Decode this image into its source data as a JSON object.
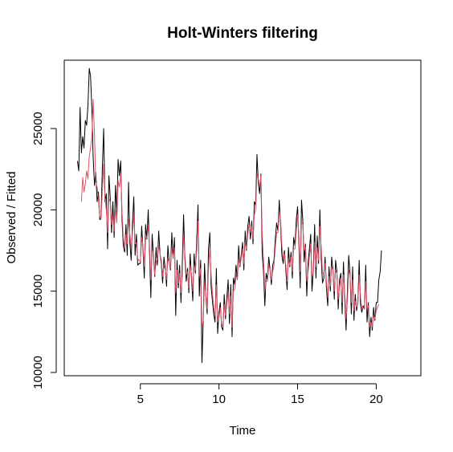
{
  "chart_data": {
    "type": "line",
    "title": "Holt-Winters filtering",
    "xlabel": "Time",
    "ylabel": "Observed / Fitted",
    "xlim": [
      0.16,
      22.84
    ],
    "ylim": [
      9800,
      29200
    ],
    "x_ticks": [
      5,
      10,
      15,
      20
    ],
    "y_ticks": [
      10000,
      15000,
      20000,
      25000
    ],
    "x_tick_labels": [
      "5",
      "10",
      "15",
      "20"
    ],
    "y_tick_labels": [
      "10000",
      "15000",
      "20000",
      "25000"
    ],
    "grid": false,
    "legend": "none",
    "time_start": 1,
    "frequency": 12,
    "fitted_start": 1.25,
    "series": [
      {
        "name": "Observed",
        "color": "#000000",
        "values": [
          23000,
          22400,
          26300,
          23500,
          24500,
          23800,
          25500,
          25200,
          26400,
          28700,
          28200,
          26200,
          23200,
          21500,
          22300,
          20500,
          21100,
          19400,
          19600,
          22600,
          25000,
          20500,
          21000,
          17600,
          22100,
          20800,
          18600,
          20500,
          18300,
          21500,
          19700,
          23100,
          22100,
          23000,
          19400,
          17800,
          17400,
          19100,
          17200,
          21700,
          18000,
          16900,
          19200,
          20800,
          17200,
          18500,
          16600,
          16700,
          16700,
          19000,
          17600,
          15800,
          19100,
          18200,
          20000,
          17400,
          14600,
          18500,
          17200,
          15900,
          17700,
          16600,
          18700,
          17300,
          16700,
          15500,
          17100,
          16400,
          15300,
          17800,
          16800,
          16300,
          18600,
          17000,
          18300,
          13500,
          16900,
          15200,
          16600,
          14300,
          16700,
          19700,
          17000,
          15600,
          16400,
          14900,
          17300,
          15900,
          14400,
          17300,
          16100,
          18100,
          20300,
          14700,
          16900,
          10600,
          13200,
          16700,
          14700,
          13600,
          17600,
          18600,
          15300,
          14400,
          13600,
          13100,
          16400,
          12400,
          13700,
          14300,
          12800,
          12600,
          14800,
          13300,
          14600,
          15700,
          13000,
          15400,
          12200,
          15800,
          15400,
          16600,
          15700,
          17800,
          16500,
          17200,
          18000,
          16300,
          18700,
          17500,
          19000,
          19600,
          18200,
          19300,
          17900,
          20500,
          20300,
          23400,
          21700,
          21000,
          22200,
          17300,
          16200,
          14100,
          16100,
          15700,
          17100,
          16300,
          15400,
          16600,
          16900,
          18200,
          19200,
          18700,
          20600,
          19100,
          17200,
          16700,
          17500,
          16300,
          15100,
          17700,
          16500,
          17400,
          15800,
          18300,
          17800,
          19400,
          20200,
          17900,
          15200,
          20600,
          19300,
          16800,
          17900,
          14700,
          16700,
          17600,
          18500,
          15000,
          16300,
          19100,
          15800,
          18400,
          16700,
          20000,
          17100,
          15500,
          15800,
          17100,
          15200,
          14100,
          16500,
          15000,
          17100,
          16300,
          14500,
          16900,
          16200,
          13900,
          15700,
          16100,
          13600,
          16800,
          14500,
          12600,
          15000,
          17200,
          16100,
          13600,
          16500,
          13200,
          14800,
          13800,
          14300,
          16900,
          14200,
          13700,
          14100,
          13900,
          16600,
          13100,
          14300,
          12200,
          13400,
          12600,
          14000,
          13200,
          14300,
          14300,
          15700,
          16200,
          17500
        ]
      },
      {
        "name": "Fitted",
        "color": "#DF536B",
        "values": [
          20500,
          22000,
          21100,
          21600,
          22400,
          21900,
          23300,
          23800,
          24500,
          26800,
          24600,
          21700,
          21400,
          20600,
          19600,
          19400,
          21200,
          22800,
          20800,
          20000,
          18600,
          20700,
          20500,
          19100,
          19600,
          18700,
          20000,
          19200,
          21800,
          21400,
          22200,
          19900,
          18300,
          17600,
          18500,
          17900,
          19400,
          18500,
          17600,
          18600,
          19700,
          17900,
          18000,
          17000,
          16900,
          16800,
          18300,
          17800,
          16500,
          18200,
          18300,
          19000,
          17800,
          15700,
          17500,
          17400,
          16000,
          16800,
          17000,
          17800,
          17300,
          16900,
          15900,
          16600,
          16300,
          15700,
          17000,
          16800,
          16400,
          17700,
          17000,
          17700,
          14900,
          16300,
          15500,
          16100,
          14900,
          16000,
          18400,
          17300,
          16000,
          16200,
          15200,
          16600,
          16100,
          15000,
          16600,
          16300,
          17500,
          19300,
          15900,
          16400,
          12600,
          13300,
          15500,
          14800,
          13900,
          16400,
          17700,
          16000,
          14900,
          14000,
          13500,
          15400,
          13100,
          13400,
          14000,
          13000,
          12800,
          14200,
          13500,
          14200,
          15000,
          13600,
          14700,
          12800,
          15000,
          15100,
          16000,
          15700,
          17000,
          16600,
          17000,
          17600,
          16700,
          18000,
          17600,
          18500,
          19100,
          18600,
          19000,
          18200,
          19700,
          20000,
          22200,
          21900,
          21400,
          22100,
          18500,
          16900,
          15000,
          15600,
          15600,
          16600,
          16300,
          15700,
          16200,
          16600,
          17700,
          18600,
          18600,
          19900,
          19400,
          17800,
          17000,
          17300,
          16600,
          15600,
          17000,
          16600,
          17100,
          16200,
          17600,
          17600,
          18700,
          19700,
          18400,
          16200,
          19200,
          19100,
          17500,
          17700,
          15600,
          16200,
          17100,
          17900,
          15900,
          16100,
          18000,
          16500,
          17700,
          16900,
          19000,
          17700,
          16200,
          16000,
          16700,
          15600,
          14600,
          15900,
          15300,
          16500,
          16300,
          15000,
          16300,
          16100,
          14500,
          15300,
          15800,
          14300,
          16000,
          14900,
          13300,
          14400,
          16300,
          16000,
          14300,
          15700,
          13800,
          14400,
          14000,
          14200,
          16000,
          14700,
          13900,
          14000,
          13900,
          15600,
          13900,
          14100,
          12800,
          13100,
          12800,
          13500,
          13300,
          13800,
          14000,
          14200
        ]
      }
    ]
  }
}
